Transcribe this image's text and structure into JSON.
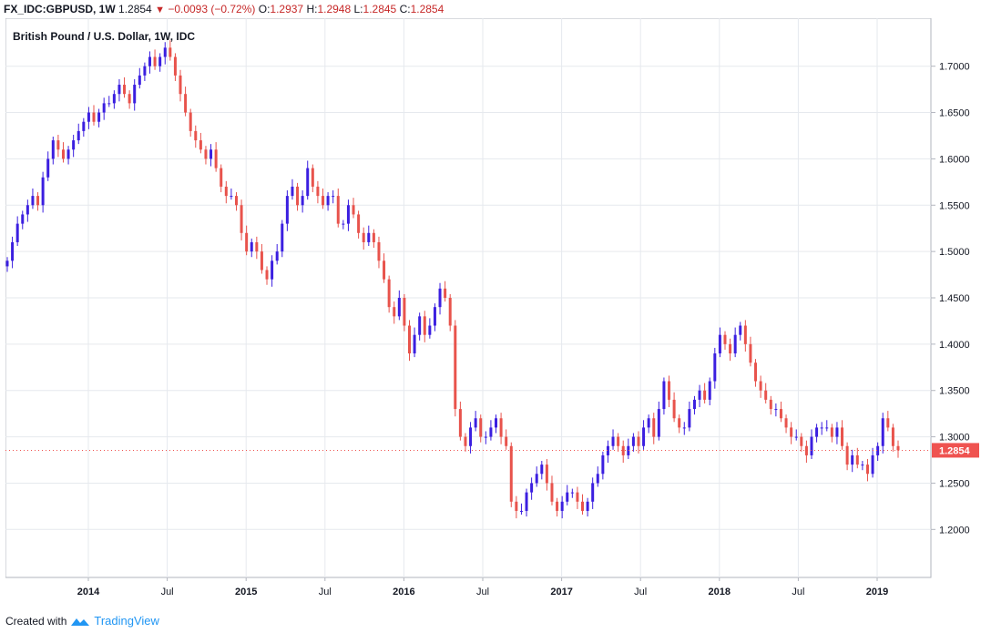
{
  "header": {
    "symbol": "FX_IDC:GBPUSD, 1W",
    "last": "1.2854",
    "change": "−0.0093 (−0.72%)",
    "open_label": "O:",
    "open": "1.2937",
    "high_label": "H:",
    "high": "1.2948",
    "low_label": "L:",
    "low": "1.2845",
    "close_label": "C:",
    "close": "1.2854"
  },
  "footer": {
    "created_with": "Created with",
    "brand": "TradingView"
  },
  "colors": {
    "up": "#3b1fe0",
    "down": "#e8534c",
    "grid": "#e6e9ee",
    "price_tag": "#ef5350"
  },
  "chart_data": {
    "type": "candlestick",
    "title": "British Pound / U.S. Dollar, 1W, IDC",
    "ylim": [
      1.16,
      1.74
    ],
    "yticks": [
      "1.7000",
      "1.6500",
      "1.6000",
      "1.5500",
      "1.5000",
      "1.4500",
      "1.4000",
      "1.3500",
      "1.3000",
      "1.2500",
      "1.2000"
    ],
    "xticks": [
      "2014",
      "Jul",
      "2015",
      "Jul",
      "2016",
      "Jul",
      "2017",
      "Jul",
      "2018",
      "Jul",
      "2019"
    ],
    "last_price_label": "1.2854",
    "grid": true,
    "series_close": [
      1.49,
      1.51,
      1.53,
      1.54,
      1.55,
      1.56,
      1.55,
      1.58,
      1.6,
      1.62,
      1.61,
      1.6,
      1.61,
      1.62,
      1.63,
      1.64,
      1.65,
      1.64,
      1.65,
      1.66,
      1.66,
      1.67,
      1.68,
      1.67,
      1.66,
      1.68,
      1.69,
      1.7,
      1.71,
      1.7,
      1.71,
      1.72,
      1.71,
      1.69,
      1.67,
      1.65,
      1.63,
      1.62,
      1.61,
      1.6,
      1.61,
      1.59,
      1.57,
      1.56,
      1.56,
      1.55,
      1.52,
      1.5,
      1.51,
      1.5,
      1.48,
      1.47,
      1.49,
      1.5,
      1.53,
      1.56,
      1.57,
      1.55,
      1.56,
      1.59,
      1.57,
      1.56,
      1.55,
      1.56,
      1.56,
      1.53,
      1.53,
      1.55,
      1.54,
      1.52,
      1.51,
      1.52,
      1.51,
      1.49,
      1.47,
      1.44,
      1.43,
      1.45,
      1.42,
      1.39,
      1.41,
      1.43,
      1.41,
      1.42,
      1.44,
      1.46,
      1.45,
      1.42,
      1.33,
      1.3,
      1.29,
      1.31,
      1.32,
      1.3,
      1.3,
      1.31,
      1.32,
      1.3,
      1.29,
      1.23,
      1.22,
      1.22,
      1.24,
      1.25,
      1.26,
      1.27,
      1.25,
      1.23,
      1.22,
      1.23,
      1.24,
      1.24,
      1.23,
      1.22,
      1.23,
      1.25,
      1.26,
      1.28,
      1.29,
      1.3,
      1.29,
      1.28,
      1.29,
      1.3,
      1.29,
      1.31,
      1.32,
      1.3,
      1.33,
      1.36,
      1.34,
      1.32,
      1.31,
      1.31,
      1.33,
      1.34,
      1.35,
      1.34,
      1.36,
      1.39,
      1.41,
      1.4,
      1.39,
      1.41,
      1.42,
      1.4,
      1.38,
      1.36,
      1.35,
      1.34,
      1.33,
      1.33,
      1.32,
      1.31,
      1.3,
      1.3,
      1.29,
      1.28,
      1.3,
      1.31,
      1.31,
      1.31,
      1.3,
      1.31,
      1.29,
      1.27,
      1.28,
      1.27,
      1.27,
      1.26,
      1.28,
      1.29,
      1.32,
      1.31,
      1.29,
      1.2854
    ]
  }
}
